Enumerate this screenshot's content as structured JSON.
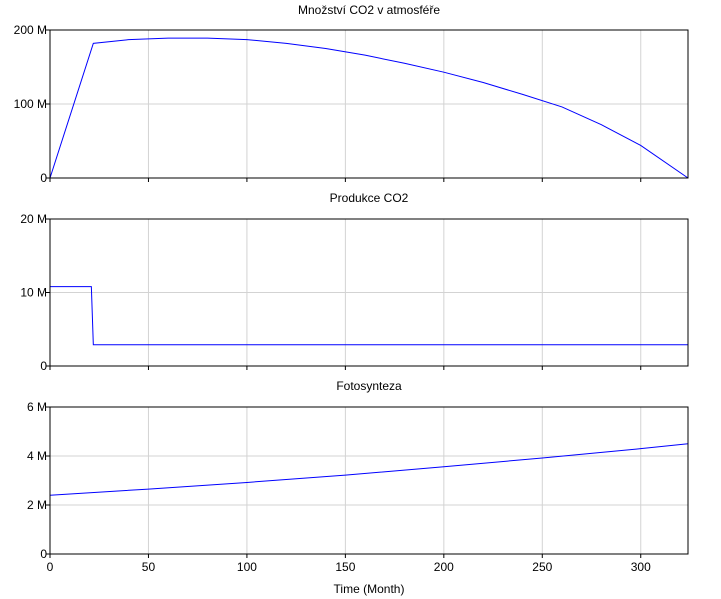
{
  "chart_data": [
    {
      "type": "line",
      "title": "Množství CO2 v atmosféře",
      "xlabel": "",
      "ylabel": "",
      "xlim": [
        0,
        324
      ],
      "ylim": [
        0,
        200000000
      ],
      "yticks": [
        0,
        100000000,
        200000000
      ],
      "ytick_labels": [
        "0",
        "100 M",
        "200 M"
      ],
      "xticks": [
        0,
        50,
        100,
        150,
        200,
        250,
        300
      ],
      "xtick_labels": [],
      "grid": true,
      "series": [
        {
          "color": "#0000ff",
          "x": [
            0,
            22,
            40,
            60,
            80,
            100,
            120,
            140,
            160,
            180,
            200,
            220,
            240,
            260,
            280,
            300,
            324
          ],
          "y": [
            0,
            182000000,
            187000000,
            189000000,
            189000000,
            187000000,
            182000000,
            175000000,
            166000000,
            155000000,
            143000000,
            129000000,
            113000000,
            96000000,
            72000000,
            44000000,
            0
          ]
        }
      ]
    },
    {
      "type": "line",
      "title": "Produkce CO2",
      "xlabel": "",
      "ylabel": "",
      "xlim": [
        0,
        324
      ],
      "ylim": [
        0,
        20000000
      ],
      "yticks": [
        0,
        10000000,
        20000000
      ],
      "ytick_labels": [
        "0",
        "10 M",
        "20 M"
      ],
      "xticks": [
        0,
        50,
        100,
        150,
        200,
        250,
        300
      ],
      "xtick_labels": [],
      "grid": true,
      "series": [
        {
          "color": "#0000ff",
          "x": [
            0,
            21,
            22,
            324
          ],
          "y": [
            10800000,
            10800000,
            2900000,
            2900000
          ]
        }
      ]
    },
    {
      "type": "line",
      "title": "Fotosynteza",
      "xlabel": "Time (Month)",
      "ylabel": "",
      "xlim": [
        0,
        324
      ],
      "ylim": [
        0,
        6000000
      ],
      "yticks": [
        0,
        2000000,
        4000000,
        6000000
      ],
      "ytick_labels": [
        "0",
        "2 M",
        "4 M",
        "6 M"
      ],
      "xticks": [
        0,
        50,
        100,
        150,
        200,
        250,
        300
      ],
      "xtick_labels": [
        "0",
        "50",
        "100",
        "150",
        "200",
        "250",
        "300"
      ],
      "grid": true,
      "series": [
        {
          "color": "#0000ff",
          "x": [
            0,
            50,
            100,
            150,
            200,
            250,
            300,
            324
          ],
          "y": [
            2400000,
            2650000,
            2920000,
            3220000,
            3560000,
            3920000,
            4300000,
            4500000
          ]
        }
      ]
    }
  ]
}
